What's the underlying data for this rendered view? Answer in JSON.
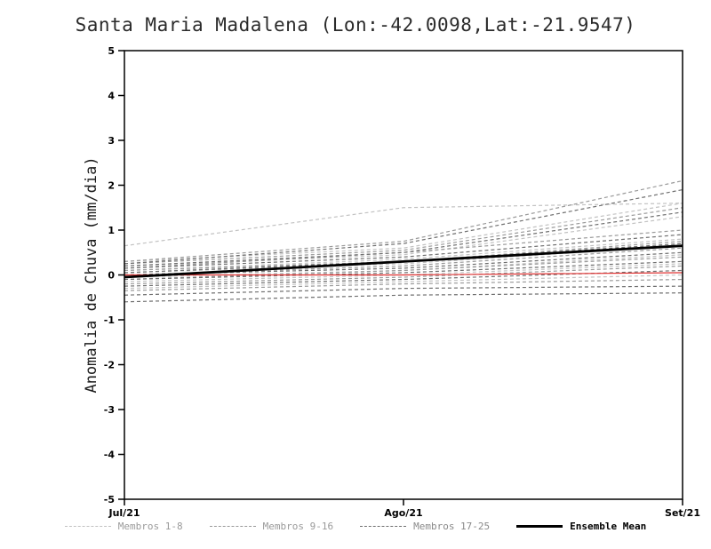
{
  "title": "Santa Maria Madalena (Lon:-42.0098,Lat:-21.9547)",
  "chart_data": {
    "type": "line",
    "title": "Santa Maria Madalena (Lon:-42.0098,Lat:-21.9547)",
    "xlabel": "",
    "ylabel": "Anomalia de Chuva (mm/dia)",
    "x_categories": [
      "Jul/21",
      "Ago/21",
      "Set/21"
    ],
    "ylim": [
      -5,
      5
    ],
    "ytick_step": 1,
    "grid": false,
    "legend_position": "bottom",
    "groups": [
      {
        "name": "Membros 1-8",
        "color": "#c2c2c2",
        "style": "dashed",
        "series": [
          [
            0.65,
            1.5,
            1.6
          ],
          [
            0.3,
            0.6,
            1.6
          ],
          [
            0.2,
            0.45,
            1.3
          ],
          [
            0.1,
            0.35,
            0.8
          ],
          [
            0.05,
            0.25,
            0.65
          ],
          [
            -0.05,
            0.1,
            0.45
          ],
          [
            -0.15,
            0.0,
            0.25
          ],
          [
            -0.3,
            -0.15,
            0.0
          ]
        ]
      },
      {
        "name": "Membros 9-16",
        "color": "#9a9a9a",
        "style": "dashed",
        "series": [
          [
            0.3,
            0.75,
            2.1
          ],
          [
            0.25,
            0.55,
            1.5
          ],
          [
            0.15,
            0.5,
            1.0
          ],
          [
            0.1,
            0.3,
            0.75
          ],
          [
            0.0,
            0.2,
            0.6
          ],
          [
            -0.1,
            0.1,
            0.4
          ],
          [
            -0.2,
            -0.05,
            0.2
          ],
          [
            -0.35,
            -0.2,
            -0.1
          ]
        ]
      },
      {
        "name": "Membros 17-25",
        "color": "#6f6f6f",
        "style": "dashed",
        "series": [
          [
            0.25,
            0.7,
            1.9
          ],
          [
            0.2,
            0.5,
            1.4
          ],
          [
            0.15,
            0.4,
            0.9
          ],
          [
            0.05,
            0.3,
            0.7
          ],
          [
            0.0,
            0.15,
            0.5
          ],
          [
            -0.1,
            0.05,
            0.3
          ],
          [
            -0.25,
            -0.1,
            0.1
          ],
          [
            -0.45,
            -0.3,
            -0.25
          ],
          [
            -0.6,
            -0.45,
            -0.4
          ]
        ]
      }
    ],
    "mean": {
      "name": "Ensemble Mean",
      "color": "#000000",
      "values": [
        -0.05,
        0.3,
        0.65
      ]
    },
    "zero_line": {
      "color": "#e03131",
      "values": [
        0.0,
        0.0,
        0.05
      ]
    },
    "legend": [
      {
        "label": "Membros 1-8",
        "style": "dashed",
        "color": "#c2c2c2",
        "text_color": "#9a9a9a"
      },
      {
        "label": "Membros 9-16",
        "style": "dashed",
        "color": "#9a9a9a",
        "text_color": "#9a9a9a"
      },
      {
        "label": "Membros 17-25",
        "style": "dashed",
        "color": "#6f6f6f",
        "text_color": "#8a8a8a"
      },
      {
        "label": "Ensemble Mean",
        "style": "solid",
        "color": "#000000",
        "text_color": "#000000"
      }
    ]
  }
}
